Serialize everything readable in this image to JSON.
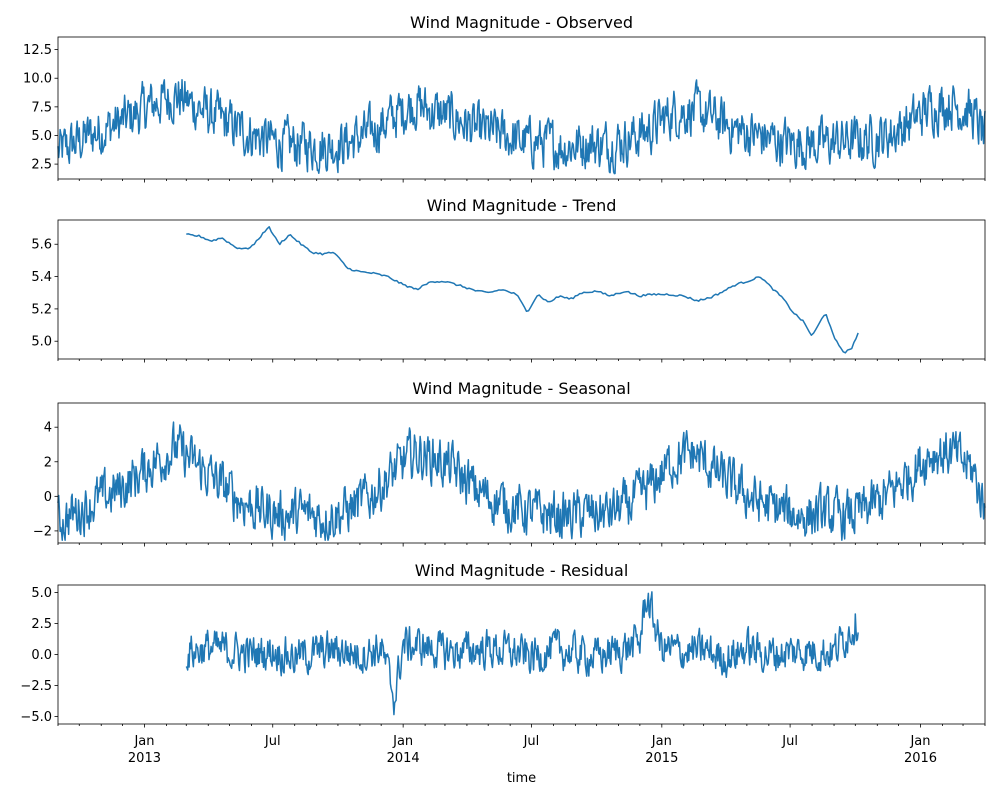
{
  "chart_data": [
    {
      "type": "line",
      "title": "Wind Magnitude - Observed",
      "xlabel": "",
      "ylabel": "",
      "ylim": [
        1.2,
        13.6
      ],
      "yticks": [
        2.5,
        5.0,
        7.5,
        10.0,
        12.5
      ],
      "ytick_labels": [
        "2.5",
        "5.0",
        "7.5",
        "10.0",
        "12.5"
      ],
      "x_range": [
        "2012-09-01",
        "2016-04-01"
      ],
      "grid": false,
      "series_color": "#1f77b4",
      "series": [
        {
          "x": [
            "2012-09-01",
            "2012-10-15",
            "2012-12-01",
            "2013-01-15",
            "2013-02-15",
            "2013-03-15",
            "2013-04-15",
            "2013-05-15",
            "2013-06-15",
            "2013-07-15",
            "2013-08-15",
            "2013-09-15",
            "2013-10-15",
            "2013-11-15",
            "2013-12-15",
            "2014-01-15",
            "2014-02-15",
            "2014-03-15",
            "2014-04-15",
            "2014-05-15",
            "2014-06-15",
            "2014-07-15",
            "2014-08-15",
            "2014-09-15",
            "2014-10-15",
            "2014-11-15",
            "2014-12-15",
            "2015-01-15",
            "2015-02-15",
            "2015-03-15",
            "2015-04-15",
            "2015-05-15",
            "2015-06-15",
            "2015-07-15",
            "2015-08-15",
            "2015-09-15",
            "2015-10-15",
            "2015-11-15",
            "2015-12-15",
            "2016-01-15",
            "2016-02-15",
            "2016-03-15",
            "2016-04-01"
          ],
          "values": [
            3.5,
            5.0,
            6.2,
            7.8,
            8.5,
            7.5,
            6.5,
            5.5,
            4.8,
            4.2,
            4.2,
            4.0,
            4.4,
            5.2,
            6.5,
            7.8,
            7.0,
            6.5,
            5.5,
            5.2,
            4.5,
            4.4,
            4.0,
            4.3,
            4.2,
            4.7,
            5.5,
            7.0,
            7.2,
            6.5,
            5.5,
            5.0,
            4.5,
            4.3,
            4.3,
            4.5,
            4.6,
            5.0,
            6.0,
            7.5,
            7.8,
            6.8,
            4.8
          ]
        }
      ]
    },
    {
      "type": "line",
      "title": "Wind Magnitude - Trend",
      "xlabel": "",
      "ylabel": "",
      "ylim": [
        4.89,
        5.75
      ],
      "yticks": [
        5.0,
        5.2,
        5.4,
        5.6
      ],
      "ytick_labels": [
        "5.0",
        "5.2",
        "5.4",
        "5.6"
      ],
      "x_range": [
        "2012-09-01",
        "2016-04-01"
      ],
      "grid": false,
      "series_color": "#1f77b4",
      "series": [
        {
          "x": [
            "2013-03-01",
            "2013-03-20",
            "2013-04-05",
            "2013-04-20",
            "2013-05-10",
            "2013-05-25",
            "2013-06-05",
            "2013-06-25",
            "2013-07-10",
            "2013-07-25",
            "2013-08-10",
            "2013-08-25",
            "2013-09-10",
            "2013-09-25",
            "2013-10-15",
            "2013-11-01",
            "2013-11-20",
            "2013-12-10",
            "2014-01-01",
            "2014-01-20",
            "2014-02-10",
            "2014-03-01",
            "2014-03-25",
            "2014-04-15",
            "2014-05-01",
            "2014-05-20",
            "2014-06-10",
            "2014-06-25",
            "2014-07-10",
            "2014-07-25",
            "2014-08-10",
            "2014-08-25",
            "2014-09-10",
            "2014-10-01",
            "2014-10-20",
            "2014-11-10",
            "2014-12-01",
            "2014-12-20",
            "2015-01-10",
            "2015-02-01",
            "2015-02-20",
            "2015-03-10",
            "2015-03-25",
            "2015-04-15",
            "2015-05-01",
            "2015-05-20",
            "2015-06-05",
            "2015-06-20",
            "2015-07-05",
            "2015-07-20",
            "2015-08-01",
            "2015-08-10",
            "2015-08-20",
            "2015-09-01",
            "2015-09-15",
            "2015-09-25",
            "2015-10-05"
          ],
          "values": [
            5.66,
            5.65,
            5.62,
            5.64,
            5.58,
            5.57,
            5.6,
            5.71,
            5.6,
            5.66,
            5.6,
            5.55,
            5.54,
            5.55,
            5.45,
            5.43,
            5.42,
            5.4,
            5.35,
            5.32,
            5.37,
            5.37,
            5.34,
            5.31,
            5.3,
            5.32,
            5.29,
            5.18,
            5.29,
            5.24,
            5.28,
            5.26,
            5.3,
            5.31,
            5.28,
            5.31,
            5.28,
            5.29,
            5.29,
            5.28,
            5.25,
            5.27,
            5.3,
            5.35,
            5.37,
            5.4,
            5.33,
            5.27,
            5.18,
            5.12,
            5.03,
            5.1,
            5.18,
            5.02,
            4.93,
            4.95,
            5.05
          ]
        }
      ]
    },
    {
      "type": "line",
      "title": "Wind Magnitude - Seasonal",
      "xlabel": "",
      "ylabel": "",
      "ylim": [
        -2.7,
        5.4
      ],
      "yticks": [
        -2,
        0,
        2,
        4
      ],
      "ytick_labels": [
        "−2",
        "0",
        "2",
        "4"
      ],
      "x_range": [
        "2012-09-01",
        "2016-04-01"
      ],
      "grid": false,
      "series_color": "#1f77b4",
      "series": [
        {
          "x": [
            "2012-09-01",
            "2012-10-15",
            "2012-12-01",
            "2013-01-15",
            "2013-02-15",
            "2013-03-15",
            "2013-04-15",
            "2013-05-15",
            "2013-06-15",
            "2013-07-15",
            "2013-08-15",
            "2013-09-15",
            "2013-10-15",
            "2013-11-15",
            "2013-12-15",
            "2014-01-15",
            "2014-02-15",
            "2014-03-15",
            "2014-04-15",
            "2014-05-15",
            "2014-06-15",
            "2014-07-15",
            "2014-08-15",
            "2014-09-15",
            "2014-10-15",
            "2014-11-15",
            "2014-12-15",
            "2015-01-15",
            "2015-02-15",
            "2015-03-15",
            "2015-04-15",
            "2015-05-15",
            "2015-06-15",
            "2015-07-15",
            "2015-08-15",
            "2015-09-15",
            "2015-10-15",
            "2015-11-15",
            "2015-12-15",
            "2016-01-15",
            "2016-02-15",
            "2016-03-15",
            "2016-04-01"
          ],
          "values": [
            -1.5,
            -0.5,
            0.5,
            2.0,
            2.8,
            1.8,
            0.8,
            -0.2,
            -0.8,
            -1.1,
            -1.0,
            -1.2,
            -0.8,
            0.0,
            1.2,
            2.5,
            2.2,
            1.5,
            0.3,
            -0.3,
            -0.8,
            -1.0,
            -1.2,
            -1.0,
            -1.0,
            -0.5,
            0.5,
            2.0,
            2.5,
            1.5,
            0.5,
            -0.3,
            -0.8,
            -1.1,
            -1.0,
            -1.2,
            -0.8,
            0.0,
            1.2,
            2.5,
            2.5,
            1.5,
            -0.8
          ]
        }
      ]
    },
    {
      "type": "line",
      "title": "Wind Magnitude - Residual",
      "xlabel": "time",
      "ylabel": "",
      "ylim": [
        -5.6,
        5.6
      ],
      "yticks": [
        -5.0,
        -2.5,
        0.0,
        2.5,
        5.0
      ],
      "ytick_labels": [
        "−5.0",
        "−2.5",
        "0.0",
        "2.5",
        "5.0"
      ],
      "x_range": [
        "2012-09-01",
        "2016-04-01"
      ],
      "grid": false,
      "series_color": "#1f77b4",
      "series": [
        {
          "x": [
            "2013-03-01",
            "2013-04-01",
            "2013-05-01",
            "2013-06-01",
            "2013-07-01",
            "2013-08-01",
            "2013-09-01",
            "2013-10-01",
            "2013-11-01",
            "2013-12-01",
            "2013-12-20",
            "2014-01-01",
            "2014-02-01",
            "2014-03-01",
            "2014-04-01",
            "2014-05-01",
            "2014-06-01",
            "2014-07-01",
            "2014-08-01",
            "2014-09-01",
            "2014-10-01",
            "2014-11-01",
            "2014-12-01",
            "2014-12-10",
            "2015-01-01",
            "2015-02-01",
            "2015-03-01",
            "2015-04-01",
            "2015-05-01",
            "2015-06-01",
            "2015-07-01",
            "2015-08-01",
            "2015-09-01",
            "2015-10-05"
          ],
          "values": [
            0.2,
            0.5,
            0.3,
            0.0,
            0.3,
            -0.2,
            0.1,
            0.4,
            0.0,
            0.5,
            -3.5,
            0.8,
            0.6,
            0.2,
            0.3,
            0.5,
            0.2,
            -0.2,
            0.4,
            0.1,
            -0.2,
            0.3,
            1.0,
            4.8,
            0.5,
            0.2,
            0.3,
            -0.3,
            0.5,
            0.0,
            0.2,
            0.3,
            0.2,
            2.9
          ]
        }
      ]
    }
  ],
  "shared_x_axis": {
    "label": "time",
    "major_ticks": [
      {
        "date": "2013-01-01",
        "month": "Jan",
        "year": "2013"
      },
      {
        "date": "2013-07-01",
        "month": "Jul",
        "year": ""
      },
      {
        "date": "2014-01-01",
        "month": "Jan",
        "year": "2014"
      },
      {
        "date": "2014-07-01",
        "month": "Jul",
        "year": ""
      },
      {
        "date": "2015-01-01",
        "month": "Jan",
        "year": "2015"
      },
      {
        "date": "2015-07-01",
        "month": "Jul",
        "year": ""
      },
      {
        "date": "2016-01-01",
        "month": "Jan",
        "year": "2016"
      }
    ]
  }
}
